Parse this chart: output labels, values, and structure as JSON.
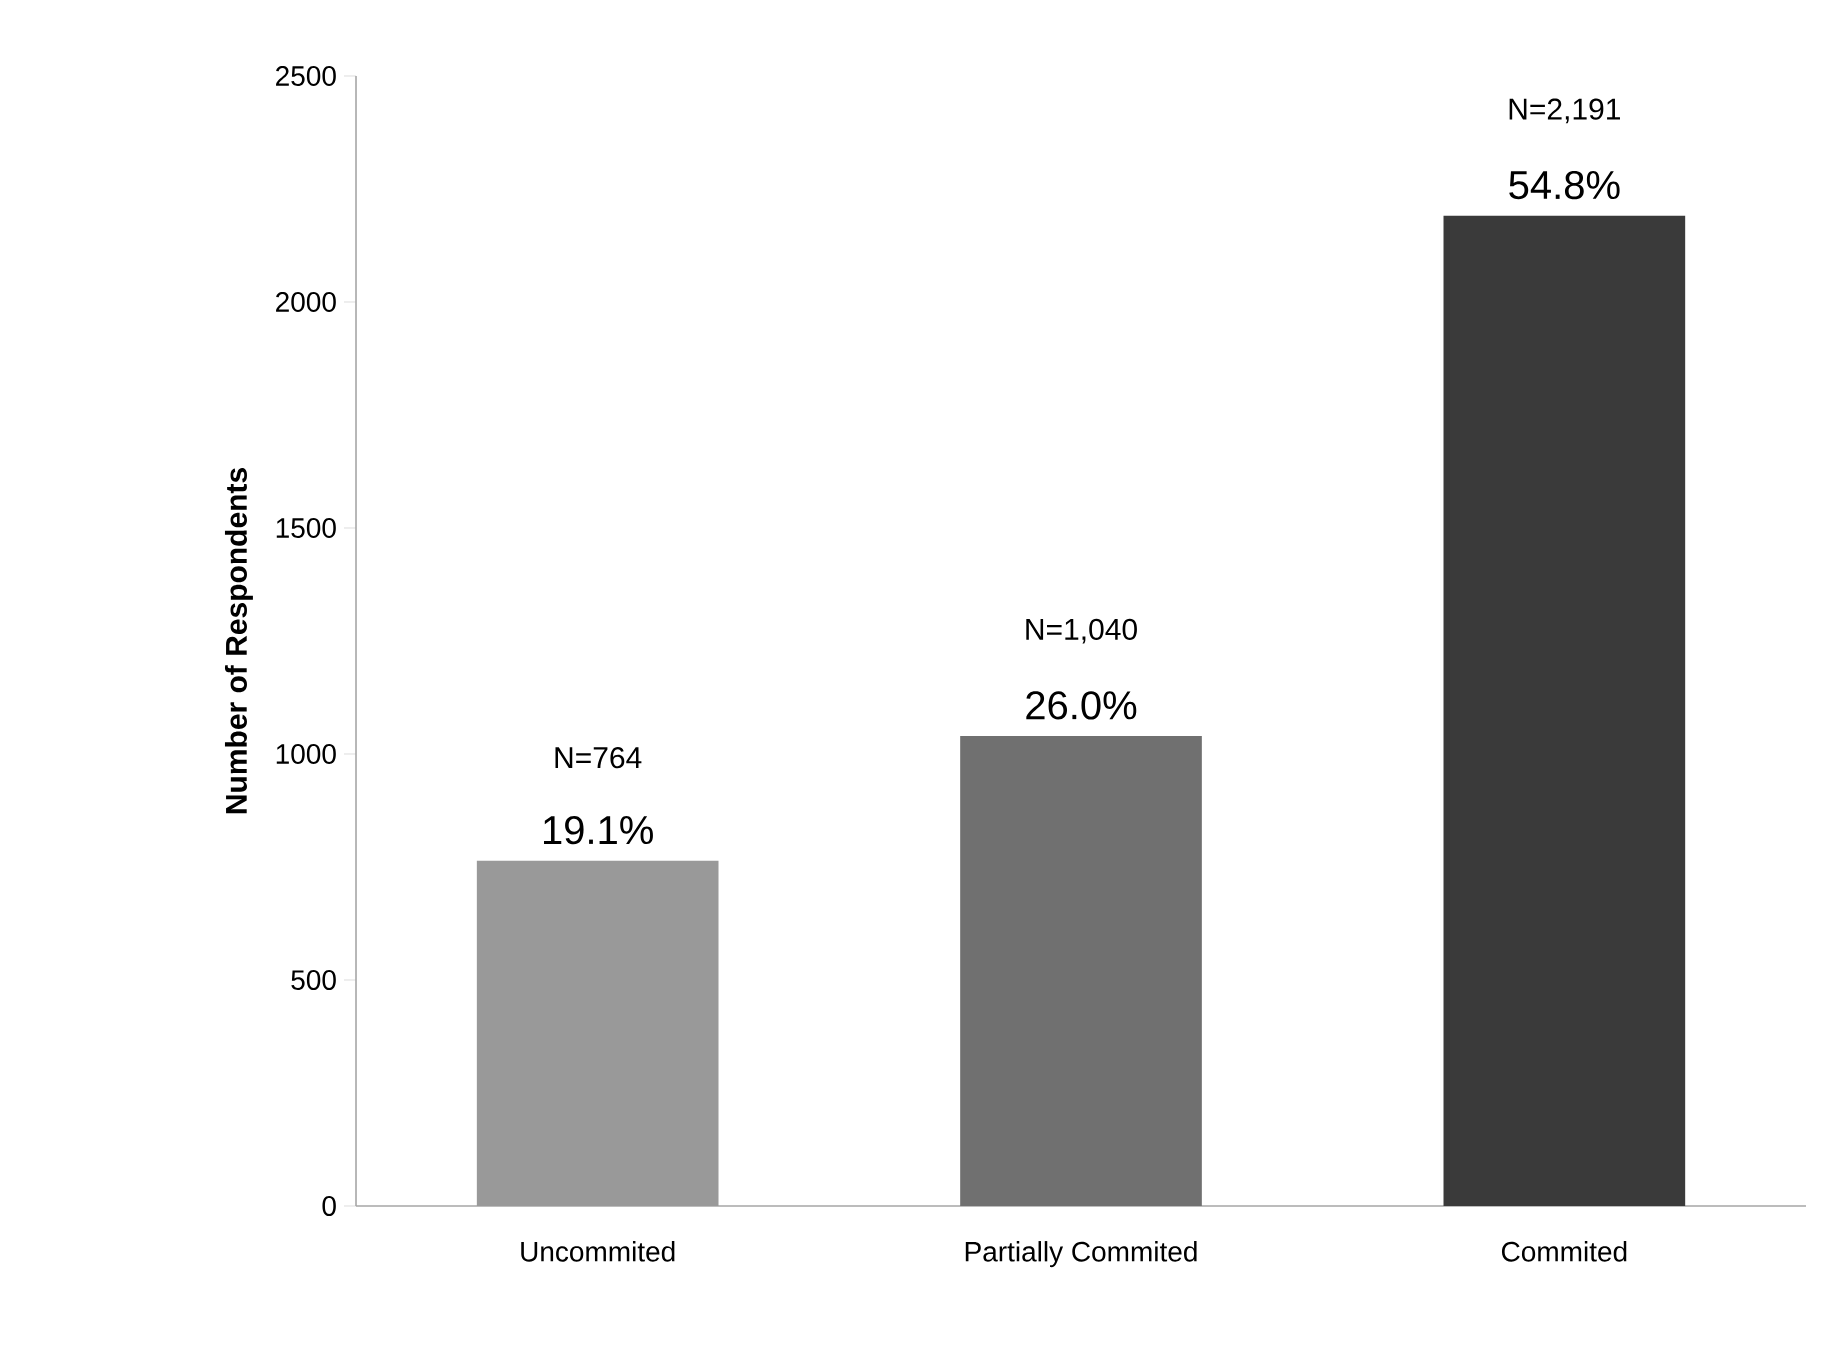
{
  "chart_data": {
    "type": "bar",
    "ylabel": "Number of Respondents",
    "categories": [
      "Uncommited",
      "Partially Commited",
      "Commited"
    ],
    "values": [
      764,
      1040,
      2191
    ],
    "colors": [
      "#999999",
      "#707070",
      "#3a3a3a"
    ],
    "value_labels": [
      "N=764",
      "N=1,040",
      "N=2,191"
    ],
    "annotations": [
      {
        "text": "19.1%",
        "x": "Uncommited",
        "y": 764
      },
      {
        "text": "26.0%",
        "x": "Partially Commited",
        "y": 1040
      },
      {
        "text": "54.8%",
        "x": "Commited",
        "y": 2191
      }
    ],
    "ylim": [
      0,
      2500
    ],
    "yticks": [
      0,
      500,
      1000,
      1500,
      2000,
      2500
    ],
    "grid": false
  }
}
